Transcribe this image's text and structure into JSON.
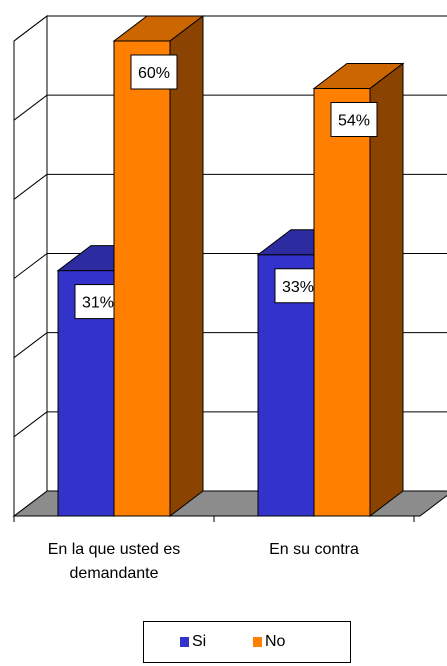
{
  "chart_data": {
    "type": "bar",
    "categories": [
      "En la que usted es demandante",
      "En su contra"
    ],
    "series": [
      {
        "name": "Si",
        "values": [
          31,
          33
        ],
        "labels": [
          "31%",
          "33%"
        ],
        "color": "#3333cc",
        "top_color": "#2c2ca0",
        "side_color": "#1f1f80"
      },
      {
        "name": "No",
        "values": [
          60,
          54
        ],
        "labels": [
          "60%",
          "54%"
        ],
        "color": "#ff8000",
        "top_color": "#cc6600",
        "side_color": "#8a4300"
      }
    ],
    "ylim": [
      0,
      60
    ],
    "grid": true,
    "legend_position": "bottom"
  },
  "legend": {
    "si_label": "Si",
    "no_label": "No"
  },
  "category_labels": [
    "En la que usted es demandante",
    "En su contra"
  ]
}
